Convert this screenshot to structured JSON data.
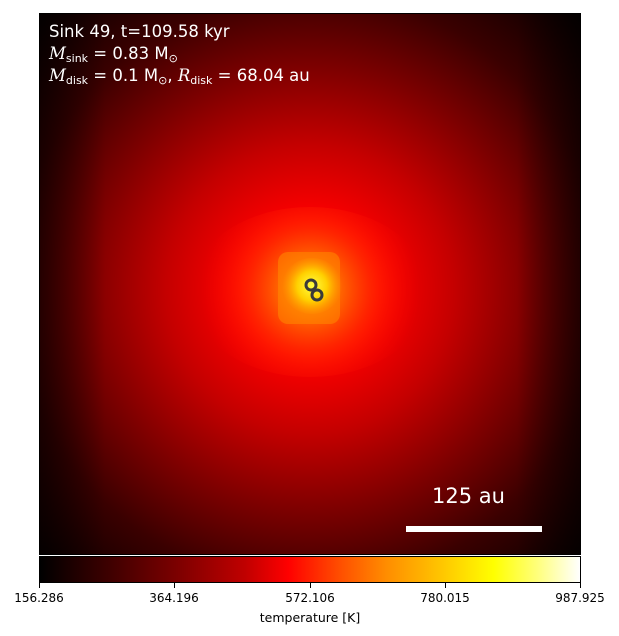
{
  "annotation": {
    "line1": "Sink 49, t=109.58 kyr",
    "m_sink_symbol": "M",
    "m_sink_sub": "sink",
    "m_sink_value": " = 0.83 M",
    "m_sink_unit_sub": "⊙",
    "m_disk_symbol": "M",
    "m_disk_sub": "disk",
    "m_disk_value": " = 0.1 M",
    "m_disk_unit_sub": "⊙",
    "comma": ", ",
    "r_disk_symbol": "R",
    "r_disk_sub": "disk",
    "r_disk_value": " = 68.04 au"
  },
  "scale_bar": {
    "label": "125 au"
  },
  "colorbar": {
    "label": "temperature [K]",
    "ticks": [
      "156.286",
      "364.196",
      "572.106",
      "780.015",
      "987.925"
    ],
    "colors": [
      "#000000",
      "#7a0000",
      "#ff0000",
      "#ff8c00",
      "#ffff00",
      "#ffffff"
    ]
  },
  "sinks": {
    "count": 2,
    "marker": "ring-icon"
  }
}
